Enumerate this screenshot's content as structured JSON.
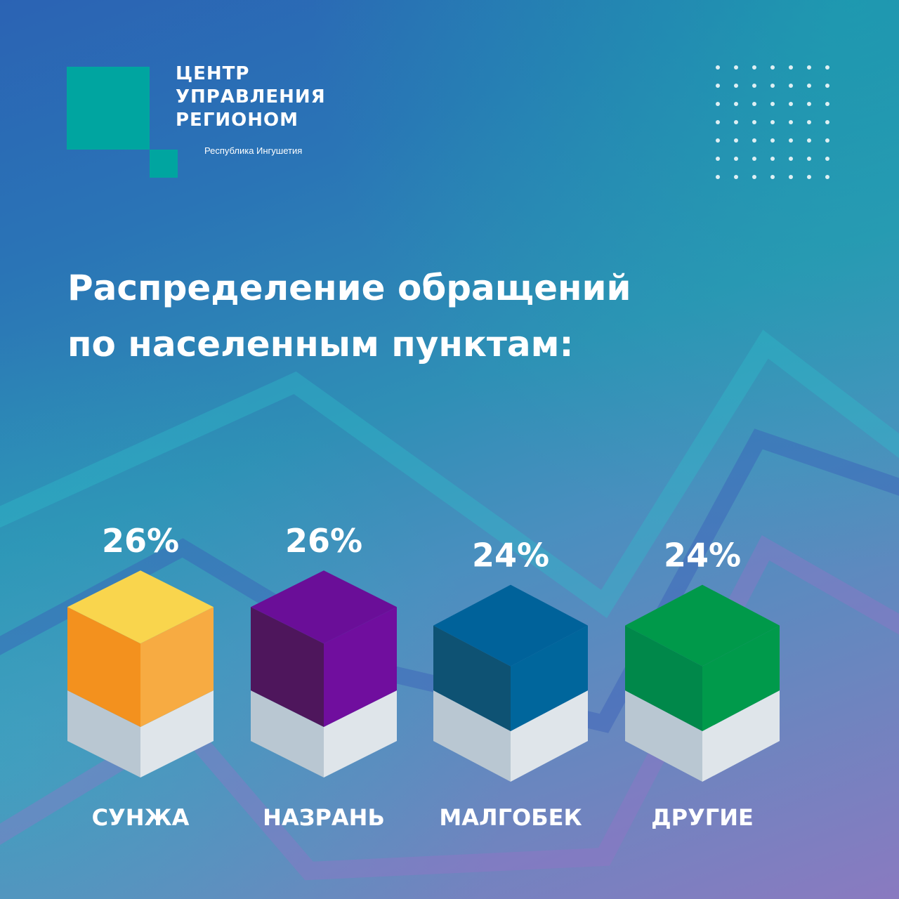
{
  "logo": {
    "line1": "ЦЕНТР",
    "line2": "УПРАВЛЕНИЯ",
    "line3": "РЕГИОНОМ",
    "region": "Республика Ингушетия",
    "color": "#00a5a0",
    "decor_icon": "dot-grid-icon"
  },
  "title": {
    "line1": "Распределение обращений",
    "line2": "по населенным пунктам:"
  },
  "chart_data": {
    "type": "bar",
    "style": "isometric-3d",
    "title": "Распределение обращений по населенным пунктам:",
    "categories": [
      "СУНЖА",
      "НАЗРАНЬ",
      "МАЛГОБЕК",
      "ДРУГИЕ"
    ],
    "values": [
      26,
      26,
      24,
      24
    ],
    "value_labels": [
      "26%",
      "26%",
      "24%",
      "24%"
    ],
    "unit": "%",
    "xlabel": "",
    "ylabel": "",
    "grid": false,
    "legend": "none",
    "colors": [
      {
        "top": "#f9d54d",
        "left": "#f3911e",
        "right": "#f7ab42"
      },
      {
        "top": "#6a0e98",
        "left": "#4e165c",
        "right": "#700e9e"
      },
      {
        "top": "#00629a",
        "left": "#0e5273",
        "right": "#00669c"
      },
      {
        "top": "#00994a",
        "left": "#00884a",
        "right": "#009a4b"
      }
    ],
    "base_colors": {
      "left": "#b9c7d2",
      "right": "#dfe5ea"
    }
  }
}
